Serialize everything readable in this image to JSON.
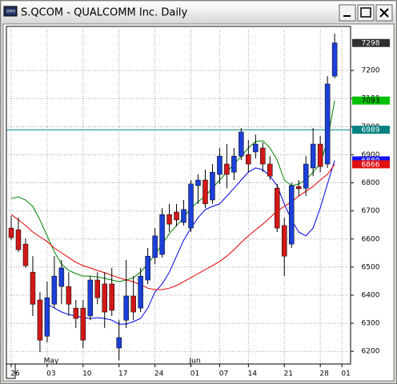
{
  "window_title": "S.QCOM - QUALCOMM Inc. Daily",
  "chart_data": {
    "type": "candlestick",
    "categories": [
      "26",
      null,
      null,
      null,
      null,
      "03",
      null,
      null,
      null,
      null,
      "10",
      null,
      null,
      null,
      null,
      "17",
      null,
      null,
      null,
      null,
      "24",
      null,
      null,
      null,
      null,
      "01",
      null,
      null,
      null,
      "07",
      null,
      null,
      null,
      "14",
      null,
      null,
      null,
      null,
      "21",
      null,
      null,
      null,
      null,
      "28",
      null,
      null,
      "01"
    ],
    "month_labels": [
      null,
      null,
      null,
      null,
      null,
      "May",
      null,
      null,
      null,
      null,
      null,
      null,
      null,
      null,
      null,
      null,
      null,
      null,
      null,
      null,
      null,
      null,
      null,
      null,
      null,
      "Jun",
      null,
      null,
      null,
      null,
      null,
      null,
      null,
      null,
      null,
      null,
      null,
      null,
      null,
      null,
      null,
      null,
      null,
      null,
      null,
      null,
      null
    ],
    "open": [
      6639,
      6633,
      6582,
      6482,
      6383,
      6254,
      6368,
      6431,
      6431,
      6354,
      6354,
      6326,
      6454,
      6440,
      6440,
      6212,
      6311,
      6397,
      6354,
      6454,
      6534,
      6545,
      6687,
      6696,
      6659,
      6639,
      6790,
      6810,
      6739,
      6830,
      6867,
      6838,
      6895,
      6901,
      6910,
      6924,
      6867,
      6781,
      6648,
      6582,
      6787,
      6781,
      6853,
      6938,
      6867,
      7180,
      null
    ],
    "high": [
      6682,
      6676,
      6602,
      6539,
      6411,
      6448,
      6539,
      6525,
      6482,
      6383,
      6383,
      6468,
      6482,
      6482,
      6497,
      6311,
      6525,
      6468,
      6497,
      6568,
      6639,
      6710,
      6725,
      6725,
      6739,
      6810,
      6830,
      6847,
      6867,
      6924,
      6938,
      6924,
      6995,
      6952,
      6972,
      6944,
      6895,
      6796,
      6676,
      6801,
      6810,
      6895,
      6995,
      6967,
      7180,
      7331,
      null
    ],
    "low": [
      6596,
      6554,
      6497,
      6326,
      6197,
      6232,
      6354,
      6368,
      6326,
      6283,
      6212,
      6311,
      6368,
      6283,
      6326,
      6169,
      6283,
      6311,
      6340,
      6440,
      6511,
      6534,
      6625,
      6645,
      6648,
      6625,
      6725,
      6710,
      6725,
      6796,
      6781,
      6810,
      6881,
      6838,
      6887,
      6838,
      6810,
      6625,
      6468,
      6568,
      6753,
      6753,
      6824,
      6838,
      6853,
      7172,
      null
    ],
    "close": [
      6605,
      6562,
      6505,
      6368,
      6240,
      6391,
      6468,
      6497,
      6368,
      6317,
      6240,
      6454,
      6391,
      6340,
      6346,
      6249,
      6397,
      6340,
      6468,
      6539,
      6611,
      6687,
      6653,
      6668,
      6705,
      6796,
      6810,
      6725,
      6838,
      6895,
      6830,
      6895,
      6981,
      6867,
      6938,
      6867,
      6824,
      6639,
      6539,
      6790,
      6779,
      6867,
      6938,
      6858,
      7152,
      7298,
      null
    ],
    "up_color": "#1c3fd8",
    "down_color": "#d01818",
    "lines": [
      {
        "color": "#008000",
        "values": [
          6744,
          6750,
          6739,
          6716,
          6668,
          6611,
          6554,
          6511,
          6488,
          6477,
          6468,
          6468,
          6465,
          6460,
          6454,
          6448,
          6454,
          6462,
          6482,
          6511,
          6545,
          6582,
          6619,
          6648,
          6676,
          6710,
          6733,
          6753,
          6781,
          6810,
          6838,
          6867,
          6895,
          6924,
          6947,
          6950,
          6924,
          6881,
          6810,
          6790,
          6796,
          6810,
          6838,
          6867,
          6952,
          7093,
          null
        ]
      },
      {
        "color": "#0000e0",
        "values": [
          null,
          null,
          null,
          null,
          null,
          6368,
          6354,
          6340,
          6331,
          6326,
          6320,
          6317,
          6320,
          6317,
          6311,
          6297,
          6297,
          6306,
          6317,
          6354,
          6411,
          6440,
          6482,
          6539,
          6596,
          6639,
          6676,
          6705,
          6716,
          6725,
          6753,
          6781,
          6810,
          6838,
          6853,
          6847,
          6824,
          6790,
          6725,
          6668,
          6625,
          6611,
          6639,
          6710,
          6796,
          6880,
          null
        ]
      },
      {
        "color": "#e00000",
        "values": [
          6687,
          6668,
          6648,
          6625,
          6608,
          6591,
          6568,
          6551,
          6534,
          6517,
          6505,
          6497,
          6488,
          6480,
          6471,
          6462,
          6454,
          6448,
          6437,
          6425,
          6420,
          6420,
          6425,
          6434,
          6448,
          6462,
          6477,
          6491,
          6505,
          6520,
          6539,
          6562,
          6588,
          6611,
          6633,
          6653,
          6676,
          6700,
          6716,
          6733,
          6753,
          6770,
          6787,
          6810,
          6830,
          6866,
          null
        ]
      }
    ],
    "markers": [
      {
        "value": 7298,
        "bg": "#303030",
        "fg": "#ffffff",
        "line": false
      },
      {
        "value": 7093,
        "bg": "#00c000",
        "fg": "#000000",
        "line": false
      },
      {
        "value": 6989,
        "bg": "#008080",
        "fg": "#ffffff",
        "line": true
      },
      {
        "value": 6880,
        "bg": "#1010ff",
        "fg": "#ffffff",
        "line": false
      },
      {
        "value": 6866,
        "bg": "#e01010",
        "fg": "#ffffff",
        "line": false
      }
    ],
    "ylim": [
      6155,
      7357
    ],
    "yticks": [
      6200,
      6300,
      6400,
      6500,
      6600,
      6700,
      6800,
      6900,
      7000,
      7100,
      7200
    ],
    "grid": true
  }
}
